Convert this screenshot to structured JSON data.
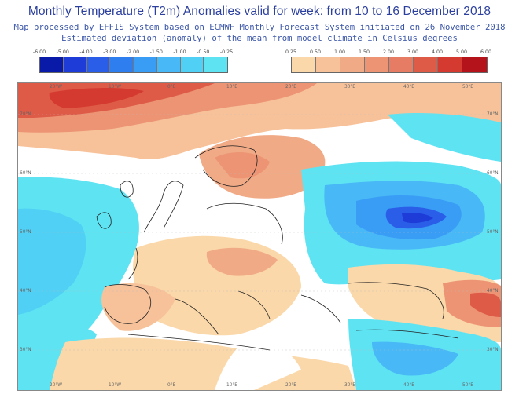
{
  "title": "Monthly Temperature (T2m) Anomalies valid for week: from 10 to 16 December 2018",
  "subtitle_line1": "Map processed by EFFIS System based on ECMWF Monthly Forecast System initiated on 26 November 2018",
  "subtitle_line2": "Estimated deviation (anomaly) of the mean from model climate in Celsius degrees",
  "cold_legend": {
    "labels": [
      "-6.00",
      "-5.00",
      "-4.00",
      "-3.00",
      "-2.00",
      "-1.50",
      "-1.00",
      "-0.50",
      "-0.25"
    ],
    "colors": [
      "#0a1aa8",
      "#1d3cd8",
      "#2a5ee8",
      "#2f7ef0",
      "#3a9df5",
      "#48b8f6",
      "#4fd0f4",
      "#5ee3f3"
    ]
  },
  "warm_legend": {
    "labels": [
      "0.25",
      "0.50",
      "1.00",
      "1.50",
      "2.00",
      "3.00",
      "4.00",
      "5.00",
      "6.00"
    ],
    "colors": [
      "#fbd8a9",
      "#f7c29a",
      "#f1aa86",
      "#ec9474",
      "#e67c63",
      "#de5b48",
      "#d43a2f",
      "#b5131c"
    ]
  },
  "lon_labels": [
    "20°W",
    "10°W",
    "0°E",
    "10°E",
    "20°E",
    "30°E",
    "40°E",
    "50°E"
  ],
  "lat_labels_left": [
    "70°N",
    "60°N",
    "50°N",
    "40°N",
    "30°N"
  ],
  "lat_labels_right": [
    "70°N",
    "60°N",
    "50°N",
    "40°N",
    "30°N"
  ],
  "colors": {
    "title": "#2b3f9e",
    "subtitle": "#3b56a8",
    "map_background": "#ffffff",
    "coastline": "#222222"
  }
}
